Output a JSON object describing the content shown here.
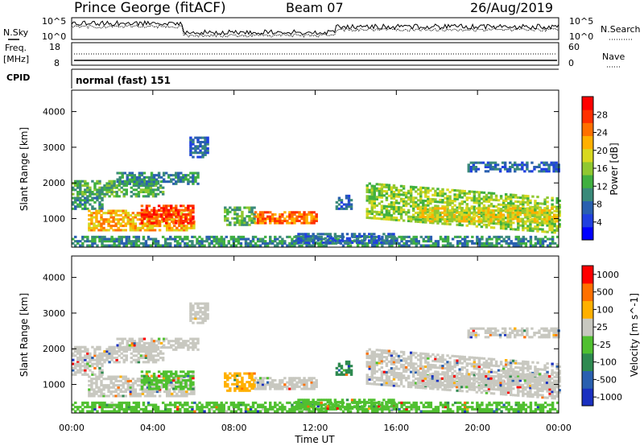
{
  "header": {
    "station": "Prince George (fitACF)",
    "beam": "Beam 07",
    "date": "26/Aug/2019"
  },
  "top_panel": {
    "left_label": "N.Sky",
    "right_label": "N.Search",
    "y_top_left": "10^5",
    "y_bottom_left": "10^0",
    "y_top_right": "10^5",
    "y_bottom_right": "10^0"
  },
  "freq_panel": {
    "label_line1": "Freq.",
    "label_line2": "[MHz]",
    "y_top": "18",
    "y_bottom": "8",
    "right_label": "Nave",
    "right_top": "60",
    "right_bottom": "0"
  },
  "cpid": {
    "label": "CPID",
    "mode": "normal (fast) 151"
  },
  "chart_data": [
    {
      "type": "heatmap",
      "name": "power",
      "ylabel": "Slant Range [km]",
      "ylim": [
        200,
        4600
      ],
      "yticks": [
        1000,
        2000,
        3000,
        4000
      ],
      "colorbar": {
        "label": "Power [dB]",
        "ticks": [
          "4",
          "8",
          "12",
          "16",
          "20",
          "24",
          "28"
        ],
        "range": [
          0,
          32
        ],
        "colors": [
          "#0000ff",
          "#2040e0",
          "#2a60b0",
          "#3a8a7a",
          "#40b040",
          "#90c830",
          "#d8d820",
          "#ffb000",
          "#ff7000",
          "#ff3000",
          "#ff0000"
        ]
      }
    },
    {
      "type": "heatmap",
      "name": "velocity",
      "ylabel": "Slant Range [km]",
      "ylim": [
        200,
        4600
      ],
      "yticks": [
        1000,
        2000,
        3000,
        4000
      ],
      "xlabel": "Time UT",
      "xticks": [
        "00:00",
        "04:00",
        "08:00",
        "12:00",
        "16:00",
        "20:00",
        "00:00"
      ],
      "colorbar": {
        "label": "Velocity [m s^-1]",
        "ticks": [
          "1000",
          "500",
          "100",
          "25",
          "-25",
          "-100",
          "-500",
          "-1000"
        ],
        "colors": [
          "#1a30c0",
          "#2a60b0",
          "#2e8a50",
          "#50c030",
          "#c8c8c0",
          "#ffb000",
          "#ff7000",
          "#ff0000"
        ]
      }
    }
  ]
}
